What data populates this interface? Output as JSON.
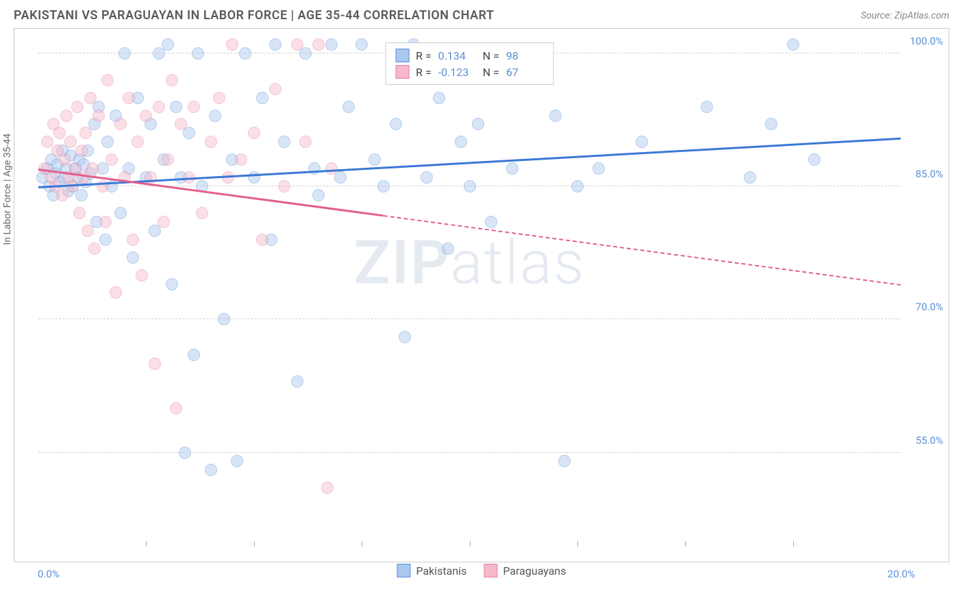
{
  "title": "PAKISTANI VS PARAGUAYAN IN LABOR FORCE | AGE 35-44 CORRELATION CHART",
  "source": "Source: ZipAtlas.com",
  "watermark_a": "ZIP",
  "watermark_b": "atlas",
  "y_axis_title": "In Labor Force | Age 35-44",
  "chart": {
    "type": "scatter",
    "xlim": [
      0.0,
      20.0
    ],
    "ylim": [
      45.0,
      102.0
    ],
    "x_tick_start": 0.0,
    "x_tick_end": 20.0,
    "x_ticks": [
      2.5,
      5.0,
      7.5,
      10.0,
      12.5,
      15.0,
      17.5
    ],
    "y_ticks": [
      55.0,
      70.0,
      85.0,
      100.0
    ],
    "x_label_start": "0.0%",
    "x_label_end": "20.0%",
    "y_tick_labels": [
      "55.0%",
      "70.0%",
      "85.0%",
      "100.0%"
    ],
    "grid_color": "#d8d8d8",
    "background_color": "#ffffff",
    "marker_radius": 9,
    "marker_opacity": 0.45,
    "trend_line_width": 3
  },
  "series": [
    {
      "name": "Pakistanis",
      "fill": "#a9c7ef",
      "stroke": "#5b8fd6",
      "line_color": "#3b78d6",
      "R_label": "R =",
      "R": "0.134",
      "N_label": "N =",
      "N": "98",
      "trend": {
        "x1": 0.0,
        "y1": 85.0,
        "x2": 20.0,
        "y2": 90.5
      },
      "solid_until": 20.0,
      "points": [
        [
          0.1,
          86
        ],
        [
          0.2,
          87
        ],
        [
          0.25,
          85
        ],
        [
          0.3,
          88
        ],
        [
          0.35,
          84
        ],
        [
          0.4,
          86.5
        ],
        [
          0.45,
          87.5
        ],
        [
          0.5,
          85.5
        ],
        [
          0.55,
          89
        ],
        [
          0.6,
          86
        ],
        [
          0.65,
          87
        ],
        [
          0.7,
          84.5
        ],
        [
          0.75,
          88.5
        ],
        [
          0.8,
          85
        ],
        [
          0.85,
          87
        ],
        [
          0.9,
          86
        ],
        [
          0.95,
          88
        ],
        [
          1.0,
          84
        ],
        [
          1.05,
          87.5
        ],
        [
          1.1,
          85.5
        ],
        [
          1.15,
          89
        ],
        [
          1.2,
          86.5
        ],
        [
          1.3,
          92
        ],
        [
          1.35,
          81
        ],
        [
          1.4,
          94
        ],
        [
          1.5,
          87
        ],
        [
          1.55,
          79
        ],
        [
          1.6,
          90
        ],
        [
          1.7,
          85
        ],
        [
          1.8,
          93
        ],
        [
          1.9,
          82
        ],
        [
          2.0,
          100
        ],
        [
          2.1,
          87
        ],
        [
          2.2,
          77
        ],
        [
          2.3,
          95
        ],
        [
          2.5,
          86
        ],
        [
          2.6,
          92
        ],
        [
          2.7,
          80
        ],
        [
          2.8,
          100
        ],
        [
          2.9,
          88
        ],
        [
          3.0,
          101
        ],
        [
          3.1,
          74
        ],
        [
          3.2,
          94
        ],
        [
          3.3,
          86
        ],
        [
          3.4,
          55
        ],
        [
          3.5,
          91
        ],
        [
          3.6,
          66
        ],
        [
          3.7,
          100
        ],
        [
          3.8,
          85
        ],
        [
          4.0,
          53
        ],
        [
          4.1,
          93
        ],
        [
          4.3,
          70
        ],
        [
          4.5,
          88
        ],
        [
          4.6,
          54
        ],
        [
          4.8,
          100
        ],
        [
          5.0,
          86
        ],
        [
          5.2,
          95
        ],
        [
          5.4,
          79
        ],
        [
          5.5,
          101
        ],
        [
          5.7,
          90
        ],
        [
          6.0,
          63
        ],
        [
          6.2,
          100
        ],
        [
          6.4,
          87
        ],
        [
          6.5,
          84
        ],
        [
          6.8,
          101
        ],
        [
          7.0,
          86
        ],
        [
          7.2,
          94
        ],
        [
          7.5,
          101
        ],
        [
          7.8,
          88
        ],
        [
          8.0,
          85
        ],
        [
          8.3,
          92
        ],
        [
          8.5,
          68
        ],
        [
          8.7,
          101
        ],
        [
          9.0,
          86
        ],
        [
          9.3,
          95
        ],
        [
          9.5,
          78
        ],
        [
          9.8,
          90
        ],
        [
          10.0,
          85
        ],
        [
          10.2,
          92
        ],
        [
          10.5,
          81
        ],
        [
          11.0,
          87
        ],
        [
          12.0,
          93
        ],
        [
          12.2,
          54
        ],
        [
          12.5,
          85
        ],
        [
          13.0,
          87
        ],
        [
          14.0,
          90
        ],
        [
          15.5,
          94
        ],
        [
          16.5,
          86
        ],
        [
          17.0,
          92
        ],
        [
          17.5,
          101
        ],
        [
          18.0,
          88
        ]
      ]
    },
    {
      "name": "Paraguayans",
      "fill": "#f5b9ca",
      "stroke": "#e87fa0",
      "line_color": "#e35f8a",
      "R_label": "R =",
      "R": "-0.123",
      "N_label": "N =",
      "N": "67",
      "trend": {
        "x1": 0.0,
        "y1": 87.0,
        "x2": 20.0,
        "y2": 74.0
      },
      "solid_until": 8.0,
      "points": [
        [
          0.15,
          87
        ],
        [
          0.2,
          90
        ],
        [
          0.3,
          86
        ],
        [
          0.35,
          92
        ],
        [
          0.4,
          85
        ],
        [
          0.45,
          89
        ],
        [
          0.5,
          91
        ],
        [
          0.55,
          84
        ],
        [
          0.6,
          88
        ],
        [
          0.65,
          93
        ],
        [
          0.7,
          86
        ],
        [
          0.75,
          90
        ],
        [
          0.8,
          85
        ],
        [
          0.85,
          87
        ],
        [
          0.9,
          94
        ],
        [
          0.95,
          82
        ],
        [
          1.0,
          89
        ],
        [
          1.05,
          86
        ],
        [
          1.1,
          91
        ],
        [
          1.15,
          80
        ],
        [
          1.2,
          95
        ],
        [
          1.25,
          87
        ],
        [
          1.3,
          78
        ],
        [
          1.4,
          93
        ],
        [
          1.5,
          85
        ],
        [
          1.55,
          81
        ],
        [
          1.6,
          97
        ],
        [
          1.7,
          88
        ],
        [
          1.8,
          73
        ],
        [
          1.9,
          92
        ],
        [
          2.0,
          86
        ],
        [
          2.1,
          95
        ],
        [
          2.2,
          79
        ],
        [
          2.3,
          90
        ],
        [
          2.4,
          75
        ],
        [
          2.5,
          93
        ],
        [
          2.6,
          86
        ],
        [
          2.7,
          65
        ],
        [
          2.8,
          94
        ],
        [
          2.9,
          81
        ],
        [
          3.0,
          88
        ],
        [
          3.1,
          97
        ],
        [
          3.2,
          60
        ],
        [
          3.3,
          92
        ],
        [
          3.5,
          86
        ],
        [
          3.6,
          94
        ],
        [
          3.8,
          82
        ],
        [
          4.0,
          90
        ],
        [
          4.2,
          95
        ],
        [
          4.4,
          86
        ],
        [
          4.5,
          101
        ],
        [
          4.7,
          88
        ],
        [
          5.0,
          91
        ],
        [
          5.2,
          79
        ],
        [
          5.5,
          96
        ],
        [
          5.7,
          85
        ],
        [
          6.0,
          101
        ],
        [
          6.2,
          90
        ],
        [
          6.5,
          101
        ],
        [
          6.7,
          51
        ],
        [
          6.8,
          87
        ]
      ]
    }
  ],
  "legend": {
    "item1": "Pakistanis",
    "item2": "Paraguayans"
  }
}
